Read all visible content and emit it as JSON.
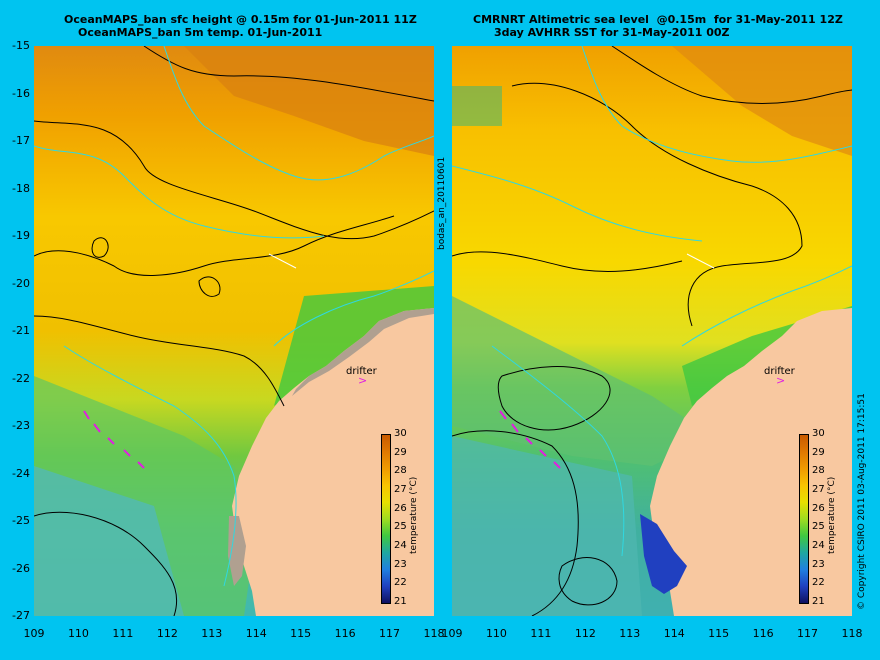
{
  "left_panel": {
    "title_line1": "OceanMAPS_ban sfc height @ 0.15m for 01-Jun-2011 11Z",
    "title_line2": "OceanMAPS_ban 5m temp. 01-Jun-2011"
  },
  "right_panel": {
    "title_line1": "CMRNRT Altimetric sea level  @0.15m  for 31-May-2011 12Z",
    "title_line2": "3day AVHRR SST for 31-May-2011 00Z"
  },
  "center_label": "bodas_an_20110601",
  "right_label": "© Copyright CSIRO 2011   03-Aug-2011 17:15:51",
  "drifter_label": "drifter",
  "axes": {
    "lat_ticks": [
      "-15",
      "-16",
      "-17",
      "-18",
      "-19",
      "-20",
      "-21",
      "-22",
      "-23",
      "-24",
      "-25",
      "-26",
      "-27"
    ],
    "lon_ticks": [
      "109",
      "110",
      "111",
      "112",
      "113",
      "114",
      "115",
      "116",
      "117",
      "118"
    ],
    "lat_range": [
      -27,
      -15
    ],
    "lon_range": [
      109,
      118
    ]
  },
  "colorbar": {
    "label": "temperature (°C)",
    "ticks": [
      "30",
      "29",
      "28",
      "27",
      "26",
      "25",
      "24",
      "23",
      "22",
      "21"
    ],
    "colors": [
      "#c85a00",
      "#e07800",
      "#f09a00",
      "#f8c400",
      "#e8e000",
      "#a0dc20",
      "#40c840",
      "#20a8a0",
      "#2080e0",
      "#2040c0",
      "#101060"
    ]
  },
  "colors": {
    "land": "#f8c8a0",
    "background": "#00c4f0",
    "drifter_track": "#e020e0"
  }
}
